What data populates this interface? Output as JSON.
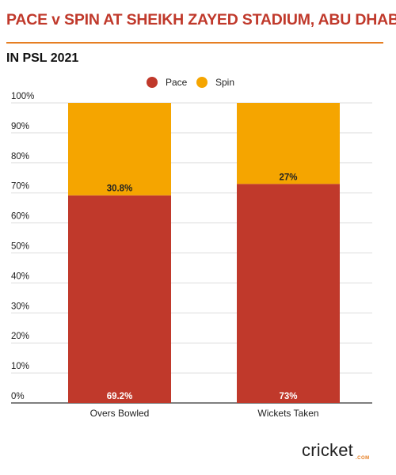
{
  "header": {
    "title": "PACE v SPIN AT SHEIKH ZAYED STADIUM, ABU DHABI",
    "subtitle": "IN PSL 2021"
  },
  "brand": {
    "name": "cricket",
    "suffix": ".COM"
  },
  "chart_data": {
    "type": "bar",
    "stacked": true,
    "categories": [
      "Overs Bowled",
      "Wickets Taken"
    ],
    "series": [
      {
        "name": "Pace",
        "values": [
          69.2,
          73
        ],
        "labels": [
          "69.2%",
          "73%"
        ],
        "color": "#c0392b"
      },
      {
        "name": "Spin",
        "values": [
          30.8,
          27
        ],
        "labels": [
          "30.8%",
          "27%"
        ],
        "color": "#f5a500"
      }
    ],
    "yticks": [
      "0%",
      "10%",
      "20%",
      "30%",
      "40%",
      "50%",
      "60%",
      "70%",
      "80%",
      "90%",
      "100%"
    ],
    "ylim": [
      0,
      100
    ],
    "grid": true,
    "legend": "top-center"
  }
}
